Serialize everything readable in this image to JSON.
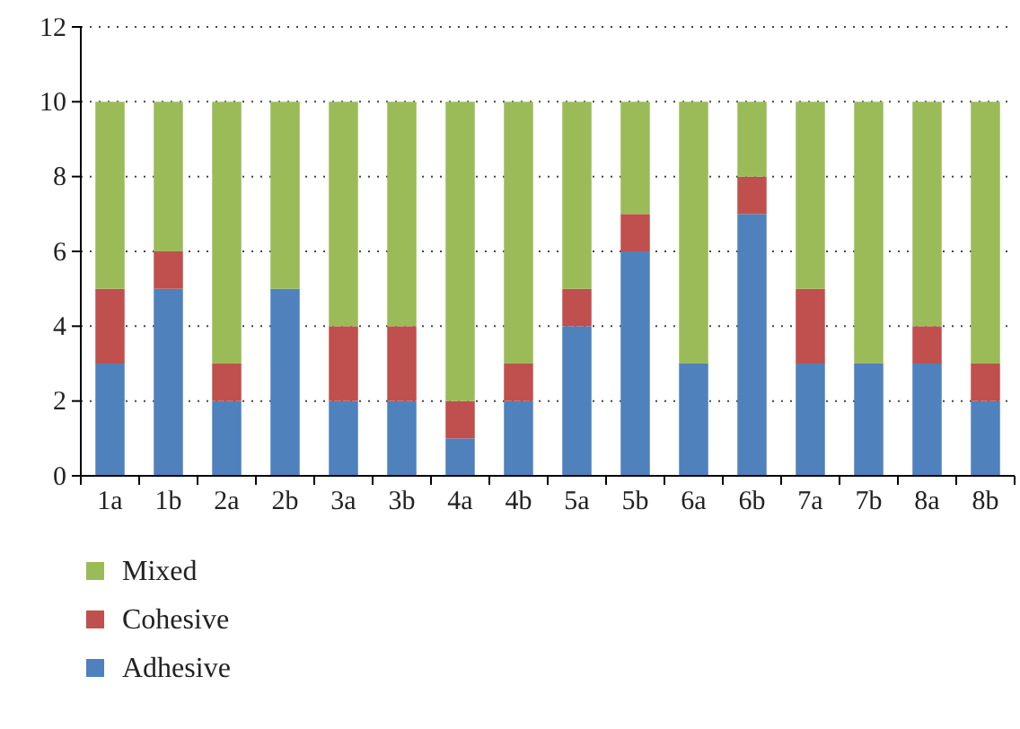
{
  "chart_data": {
    "type": "bar",
    "stacked": true,
    "categories": [
      "1a",
      "1b",
      "2a",
      "2b",
      "3a",
      "3b",
      "4a",
      "4b",
      "5a",
      "5b",
      "6a",
      "6b",
      "7a",
      "7b",
      "8a",
      "8b"
    ],
    "series": [
      {
        "name": "Adhesive",
        "color": "#4f81bd",
        "values": [
          3,
          5,
          2,
          5,
          2,
          2,
          1,
          2,
          4,
          6,
          3,
          7,
          3,
          3,
          3,
          2
        ]
      },
      {
        "name": "Cohesive",
        "color": "#c0504d",
        "values": [
          2,
          1,
          1,
          0,
          2,
          2,
          1,
          1,
          1,
          1,
          0,
          1,
          2,
          0,
          1,
          1
        ]
      },
      {
        "name": "Mixed",
        "color": "#9bbb59",
        "values": [
          5,
          4,
          7,
          5,
          6,
          6,
          8,
          7,
          5,
          3,
          7,
          2,
          5,
          7,
          6,
          7
        ]
      }
    ],
    "ylim": [
      0,
      12
    ],
    "yticks": [
      0,
      2,
      4,
      6,
      8,
      10,
      12
    ],
    "grid": "y",
    "legend": "bottom"
  }
}
